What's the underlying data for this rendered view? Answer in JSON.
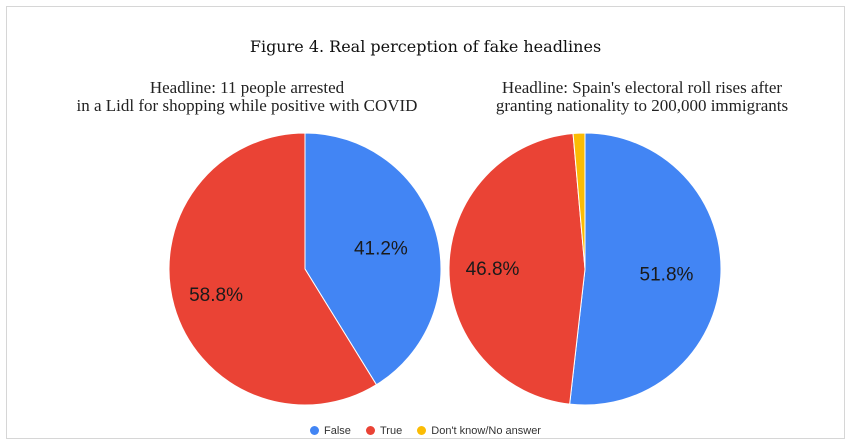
{
  "chart_data": [
    {
      "type": "pie",
      "title": "Figure 4. Real perception of fake headlines",
      "subtitle_line1": "Headline: 11 people arrested",
      "subtitle_line2": "in a Lidl for shopping while positive with COVID",
      "categories": [
        "False",
        "True",
        "Don't know/No answer"
      ],
      "values": [
        41.2,
        58.8,
        0
      ],
      "labels": [
        "41.2%",
        "58.8%",
        ""
      ],
      "colors": [
        "#4285f4",
        "#ea4335",
        "#fbbc04"
      ]
    },
    {
      "type": "pie",
      "subtitle_line1": "Headline: Spain's electoral roll rises after",
      "subtitle_line2": "granting nationality to 200,000 immigrants",
      "categories": [
        "False",
        "True",
        "Don't know/No answer"
      ],
      "values": [
        51.8,
        46.8,
        1.4
      ],
      "labels": [
        "51.8%",
        "46.8%",
        ""
      ],
      "colors": [
        "#4285f4",
        "#ea4335",
        "#fbbc04"
      ]
    }
  ],
  "legend": [
    {
      "label": "False",
      "color": "#4285f4"
    },
    {
      "label": "True",
      "color": "#ea4335"
    },
    {
      "label": "Don't know/No answer",
      "color": "#fbbc04"
    }
  ]
}
